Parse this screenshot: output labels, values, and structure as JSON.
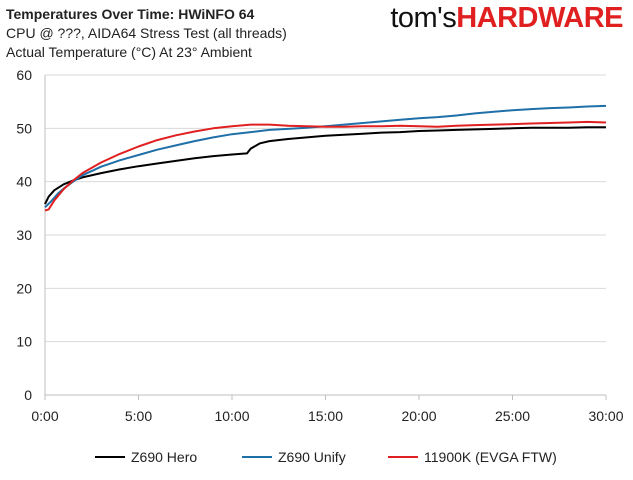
{
  "header": {
    "title": "Temperatures Over Time: HWiNFO 64",
    "subtitle1": "CPU @ ???, AIDA64 Stress Test (all threads)",
    "subtitle2": "Actual Temperature (°C) At 23° Ambient"
  },
  "logo": {
    "part1": "tom's",
    "part2": "HARDWARE"
  },
  "colors": {
    "grid": "#d9d9d9",
    "axis": "#bfbfbf"
  },
  "chart_data": {
    "type": "line",
    "title": "Temperatures Over Time: HWiNFO 64",
    "xlabel": "",
    "ylabel": "",
    "xlim": [
      0,
      30
    ],
    "ylim": [
      0,
      60
    ],
    "x_ticks": [
      "0:00",
      "5:00",
      "10:00",
      "15:00",
      "20:00",
      "25:00",
      "30:00"
    ],
    "y_ticks": [
      "0",
      "10",
      "20",
      "30",
      "40",
      "50",
      "60"
    ],
    "grid": "horizontal",
    "legend_position": "bottom",
    "x_unit": "minutes",
    "series": [
      {
        "name": "Z690 Hero",
        "color": "#000000",
        "x": [
          0,
          0.2,
          0.5,
          1,
          1.5,
          2,
          3,
          4,
          5,
          6,
          7,
          8,
          9,
          10,
          10.8,
          11,
          11.5,
          12,
          13,
          14,
          15,
          16,
          17,
          18,
          19,
          20,
          21,
          22,
          23,
          24,
          25,
          26,
          27,
          28,
          29,
          30
        ],
        "values": [
          35.8,
          37.2,
          38.4,
          39.5,
          40.2,
          40.8,
          41.6,
          42.3,
          42.9,
          43.4,
          43.9,
          44.4,
          44.8,
          45.1,
          45.3,
          46.2,
          47.2,
          47.6,
          48.0,
          48.3,
          48.6,
          48.8,
          49.0,
          49.2,
          49.3,
          49.5,
          49.6,
          49.7,
          49.8,
          49.9,
          50.0,
          50.1,
          50.1,
          50.1,
          50.2,
          50.2
        ]
      },
      {
        "name": "Z690 Unify",
        "color": "#1f6fa8",
        "x": [
          0,
          0.3,
          0.7,
          1,
          1.5,
          2,
          3,
          4,
          5,
          6,
          7,
          8,
          9,
          10,
          11,
          12,
          13,
          14,
          15,
          16,
          17,
          18,
          19,
          20,
          21,
          22,
          23,
          24,
          25,
          26,
          27,
          28,
          29,
          30
        ],
        "values": [
          35.2,
          36.2,
          37.8,
          38.7,
          40.0,
          41.2,
          42.8,
          44.0,
          45.0,
          46.0,
          46.8,
          47.6,
          48.3,
          48.9,
          49.3,
          49.7,
          49.9,
          50.1,
          50.4,
          50.7,
          51.0,
          51.3,
          51.6,
          51.9,
          52.1,
          52.4,
          52.8,
          53.1,
          53.4,
          53.6,
          53.8,
          53.9,
          54.1,
          54.2
        ]
      },
      {
        "name": "11900K (EVGA FTW)",
        "color": "#e02020",
        "x": [
          0,
          0.2,
          0.5,
          1,
          1.5,
          2,
          3,
          4,
          5,
          6,
          7,
          8,
          9,
          10,
          11,
          12,
          13,
          14,
          15,
          16,
          17,
          18,
          19,
          20,
          21,
          22,
          23,
          24,
          25,
          26,
          27,
          28,
          29,
          30
        ],
        "values": [
          34.6,
          34.8,
          36.5,
          38.6,
          40.2,
          41.6,
          43.6,
          45.2,
          46.6,
          47.8,
          48.7,
          49.4,
          50.0,
          50.4,
          50.7,
          50.7,
          50.5,
          50.4,
          50.3,
          50.3,
          50.4,
          50.4,
          50.5,
          50.4,
          50.3,
          50.5,
          50.6,
          50.7,
          50.8,
          50.9,
          51.0,
          51.1,
          51.2,
          51.1
        ]
      }
    ]
  }
}
